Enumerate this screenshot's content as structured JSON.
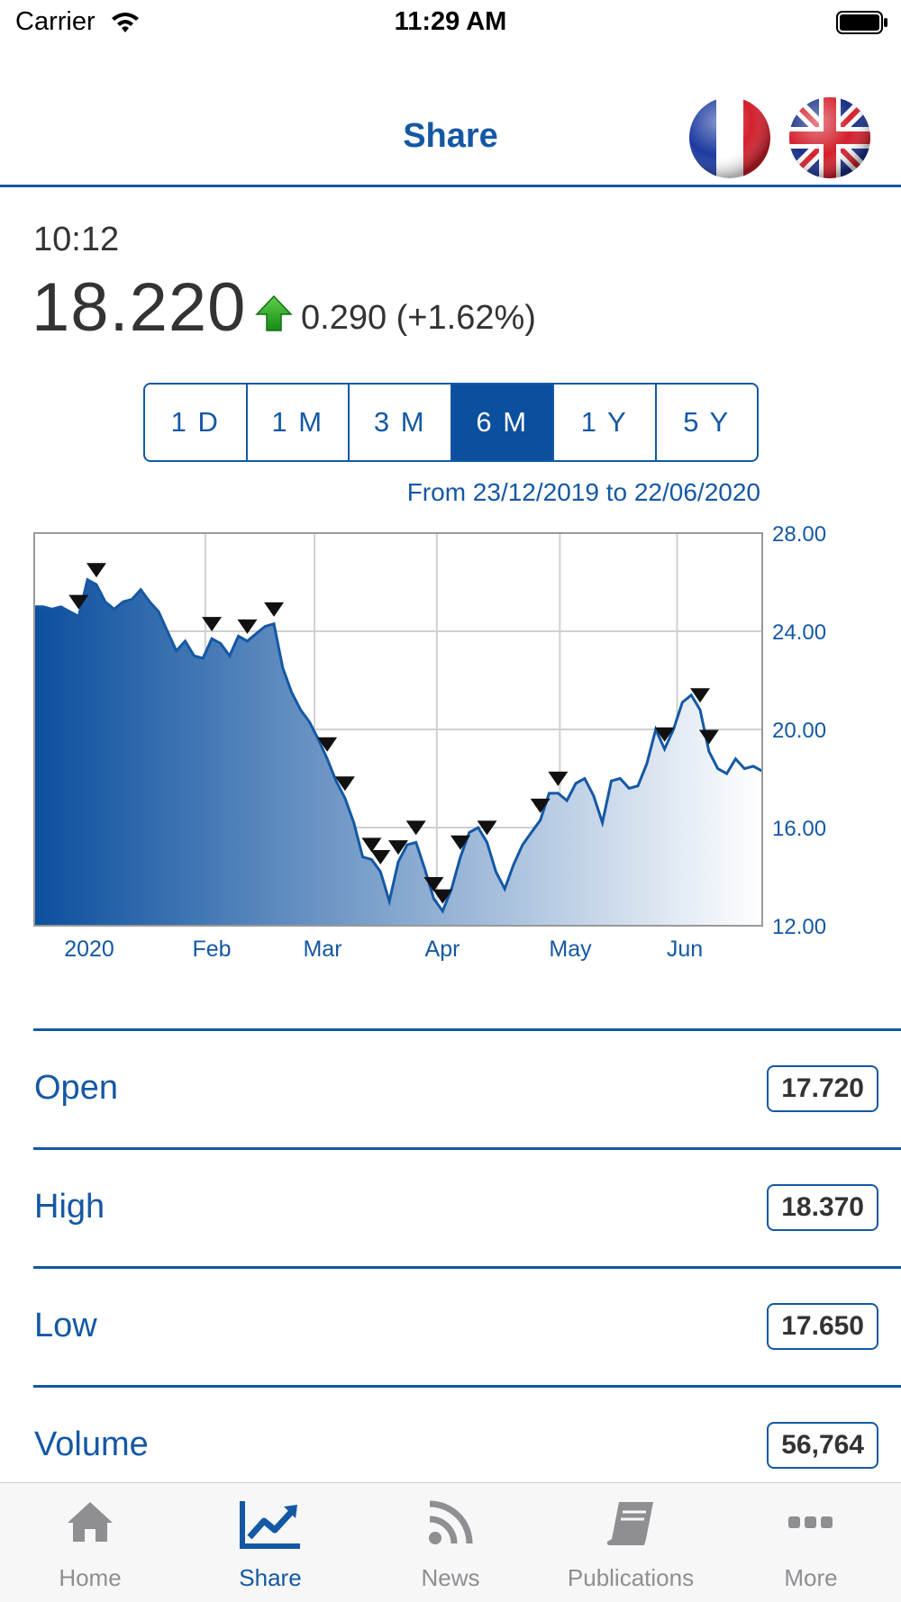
{
  "status_bar": {
    "carrier": "Carrier",
    "time": "11:29 AM"
  },
  "header": {
    "title": "Share",
    "languages": [
      "french-flag",
      "uk-flag"
    ]
  },
  "quote": {
    "time": "10:12",
    "price": "18.220",
    "change": "0.290 (+1.62%)",
    "direction_icon": "up-arrow-icon"
  },
  "ranges": [
    {
      "label": "1 D",
      "active": false
    },
    {
      "label": "1 M",
      "active": false
    },
    {
      "label": "3 M",
      "active": false
    },
    {
      "label": "6 M",
      "active": true
    },
    {
      "label": "1 Y",
      "active": false
    },
    {
      "label": "5 Y",
      "active": false
    }
  ],
  "date_range": "From 23/12/2019 to 22/06/2020",
  "chart_data": {
    "type": "area",
    "x_labels": [
      "2020",
      "Feb",
      "Mar",
      "Apr",
      "May",
      "Jun"
    ],
    "y_ticks": [
      "28.00",
      "24.00",
      "20.00",
      "16.00",
      "12.00"
    ],
    "ylim": [
      12,
      28
    ],
    "grid": true,
    "axis_position": "right",
    "colors": {
      "line": "#1458a4",
      "fill_start": "#0b4f9e",
      "fill_end": "#ffffff"
    },
    "series": [
      {
        "values": [
          25.0,
          25.0,
          24.9,
          25.0,
          24.8,
          24.6,
          26.1,
          25.9,
          25.2,
          24.9,
          25.2,
          25.3,
          25.7,
          25.2,
          24.8,
          24.0,
          23.2,
          23.6,
          23.0,
          22.9,
          23.7,
          23.5,
          23.0,
          23.8,
          23.6,
          23.9,
          24.2,
          24.3,
          22.5,
          21.5,
          20.8,
          20.3,
          19.6,
          18.8,
          17.9,
          17.2,
          16.2,
          14.8,
          14.7,
          14.2,
          13.0,
          14.6,
          15.3,
          15.4,
          14.3,
          13.1,
          12.6,
          13.5,
          14.8,
          15.8,
          16.0,
          15.4,
          14.2,
          13.5,
          14.5,
          15.3,
          15.8,
          16.3,
          17.4,
          17.4,
          17.1,
          17.8,
          18.0,
          17.3,
          16.2,
          17.9,
          18.0,
          17.6,
          17.7,
          18.6,
          20.0,
          19.2,
          20.0,
          21.1,
          21.4,
          20.8,
          19.1,
          18.4,
          18.2,
          18.8,
          18.4,
          18.5,
          18.3
        ]
      }
    ],
    "signal_markers": 20
  },
  "stats": [
    {
      "label": "Open",
      "value": "17.720"
    },
    {
      "label": "High",
      "value": "18.370"
    },
    {
      "label": "Low",
      "value": "17.650"
    },
    {
      "label": "Volume",
      "value": "56,764"
    }
  ],
  "tabs": [
    {
      "label": "Home",
      "icon": "home-icon",
      "active": false
    },
    {
      "label": "Share",
      "icon": "chart-icon",
      "active": true
    },
    {
      "label": "News",
      "icon": "rss-icon",
      "active": false
    },
    {
      "label": "Publications",
      "icon": "book-icon",
      "active": false
    },
    {
      "label": "More",
      "icon": "more-icon",
      "active": false
    }
  ]
}
